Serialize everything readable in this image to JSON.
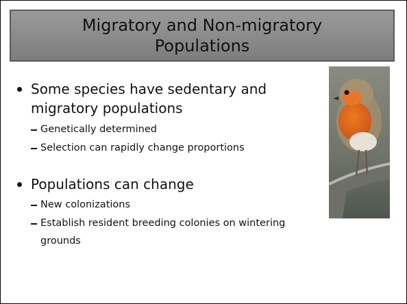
{
  "slide": {
    "title": "Migratory and Non-migratory Populations",
    "bullets": [
      {
        "text": "Some species have sedentary and migratory populations",
        "subs": [
          "Genetically determined",
          "Selection can rapidly change proportions"
        ]
      },
      {
        "text": "Populations can change",
        "subs": [
          "New colonizations",
          "Establish resident breeding colonies on wintering grounds"
        ]
      }
    ]
  }
}
